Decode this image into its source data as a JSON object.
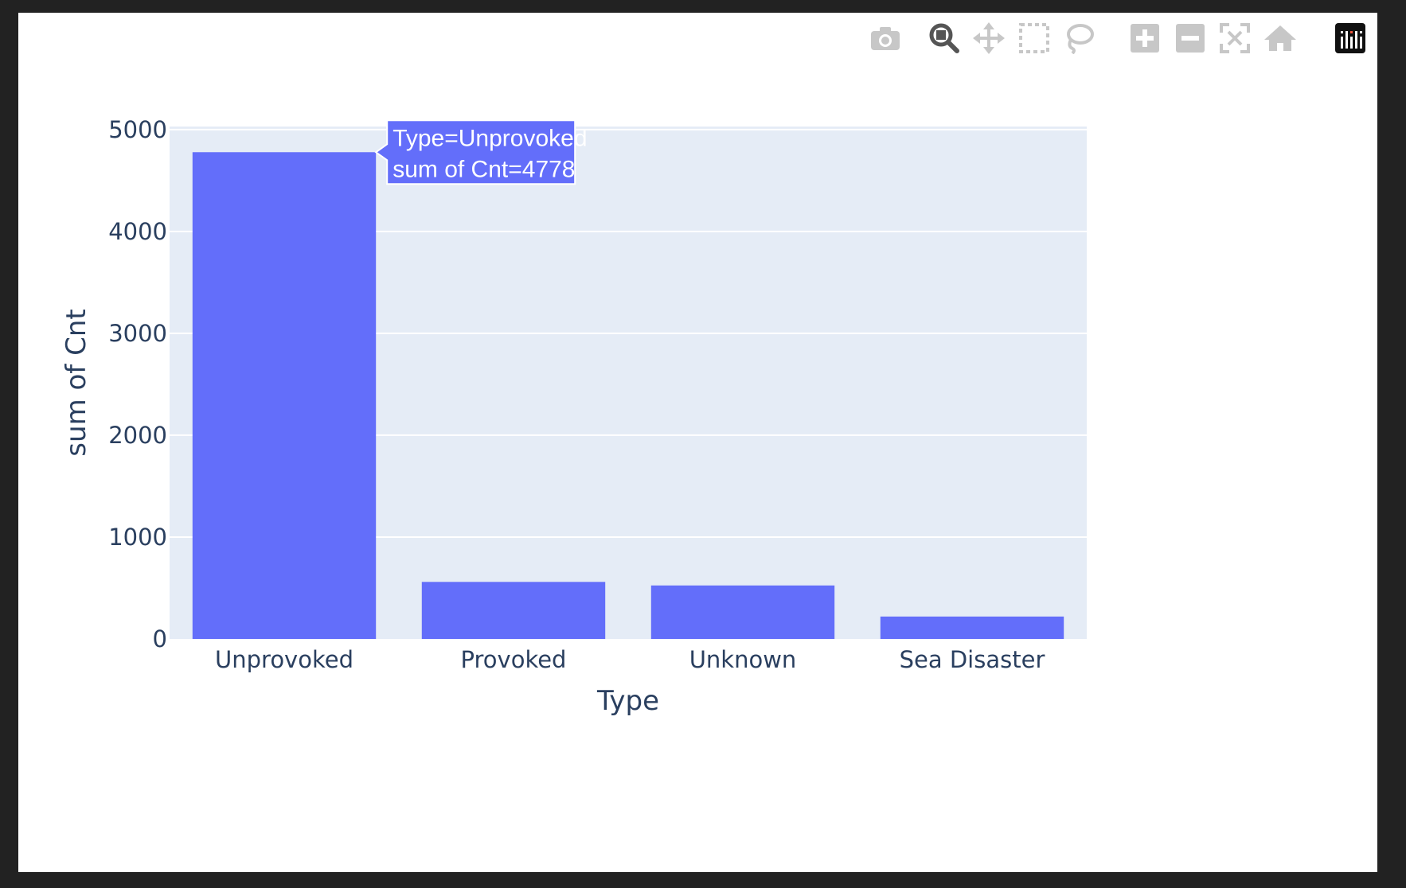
{
  "modebar": {
    "buttons": [
      {
        "name": "camera-icon",
        "active": false
      },
      {
        "name": "zoom-icon",
        "active": true
      },
      {
        "name": "pan-icon",
        "active": false
      },
      {
        "name": "box-select-icon",
        "active": false
      },
      {
        "name": "lasso-select-icon",
        "active": false
      },
      {
        "name": "zoom-in-icon",
        "active": false
      },
      {
        "name": "zoom-out-icon",
        "active": false
      },
      {
        "name": "autoscale-icon",
        "active": false
      },
      {
        "name": "reset-axes-icon",
        "active": false
      },
      {
        "name": "plotly-logo-icon",
        "active": false
      }
    ]
  },
  "colors": {
    "bar": "#636efa",
    "plot_bg": "#e5ecf6",
    "grid": "#ffffff",
    "text": "#2a3f5f",
    "modebar_icon": "#c7c7c7",
    "modebar_active": "#555555"
  },
  "chart_data": {
    "type": "bar",
    "categories": [
      "Unprovoked",
      "Provoked",
      "Unknown",
      "Sea Disaster"
    ],
    "values": [
      4778,
      560,
      525,
      220
    ],
    "xlabel": "Type",
    "ylabel": "sum of Cnt",
    "ylim": [
      0,
      5030
    ],
    "yticks": [
      0,
      1000,
      2000,
      3000,
      4000,
      5000
    ],
    "grid": true,
    "tooltip": {
      "category": "Unprovoked",
      "line1": "Type=Unprovoked",
      "line2": "sum of Cnt=4778"
    }
  }
}
